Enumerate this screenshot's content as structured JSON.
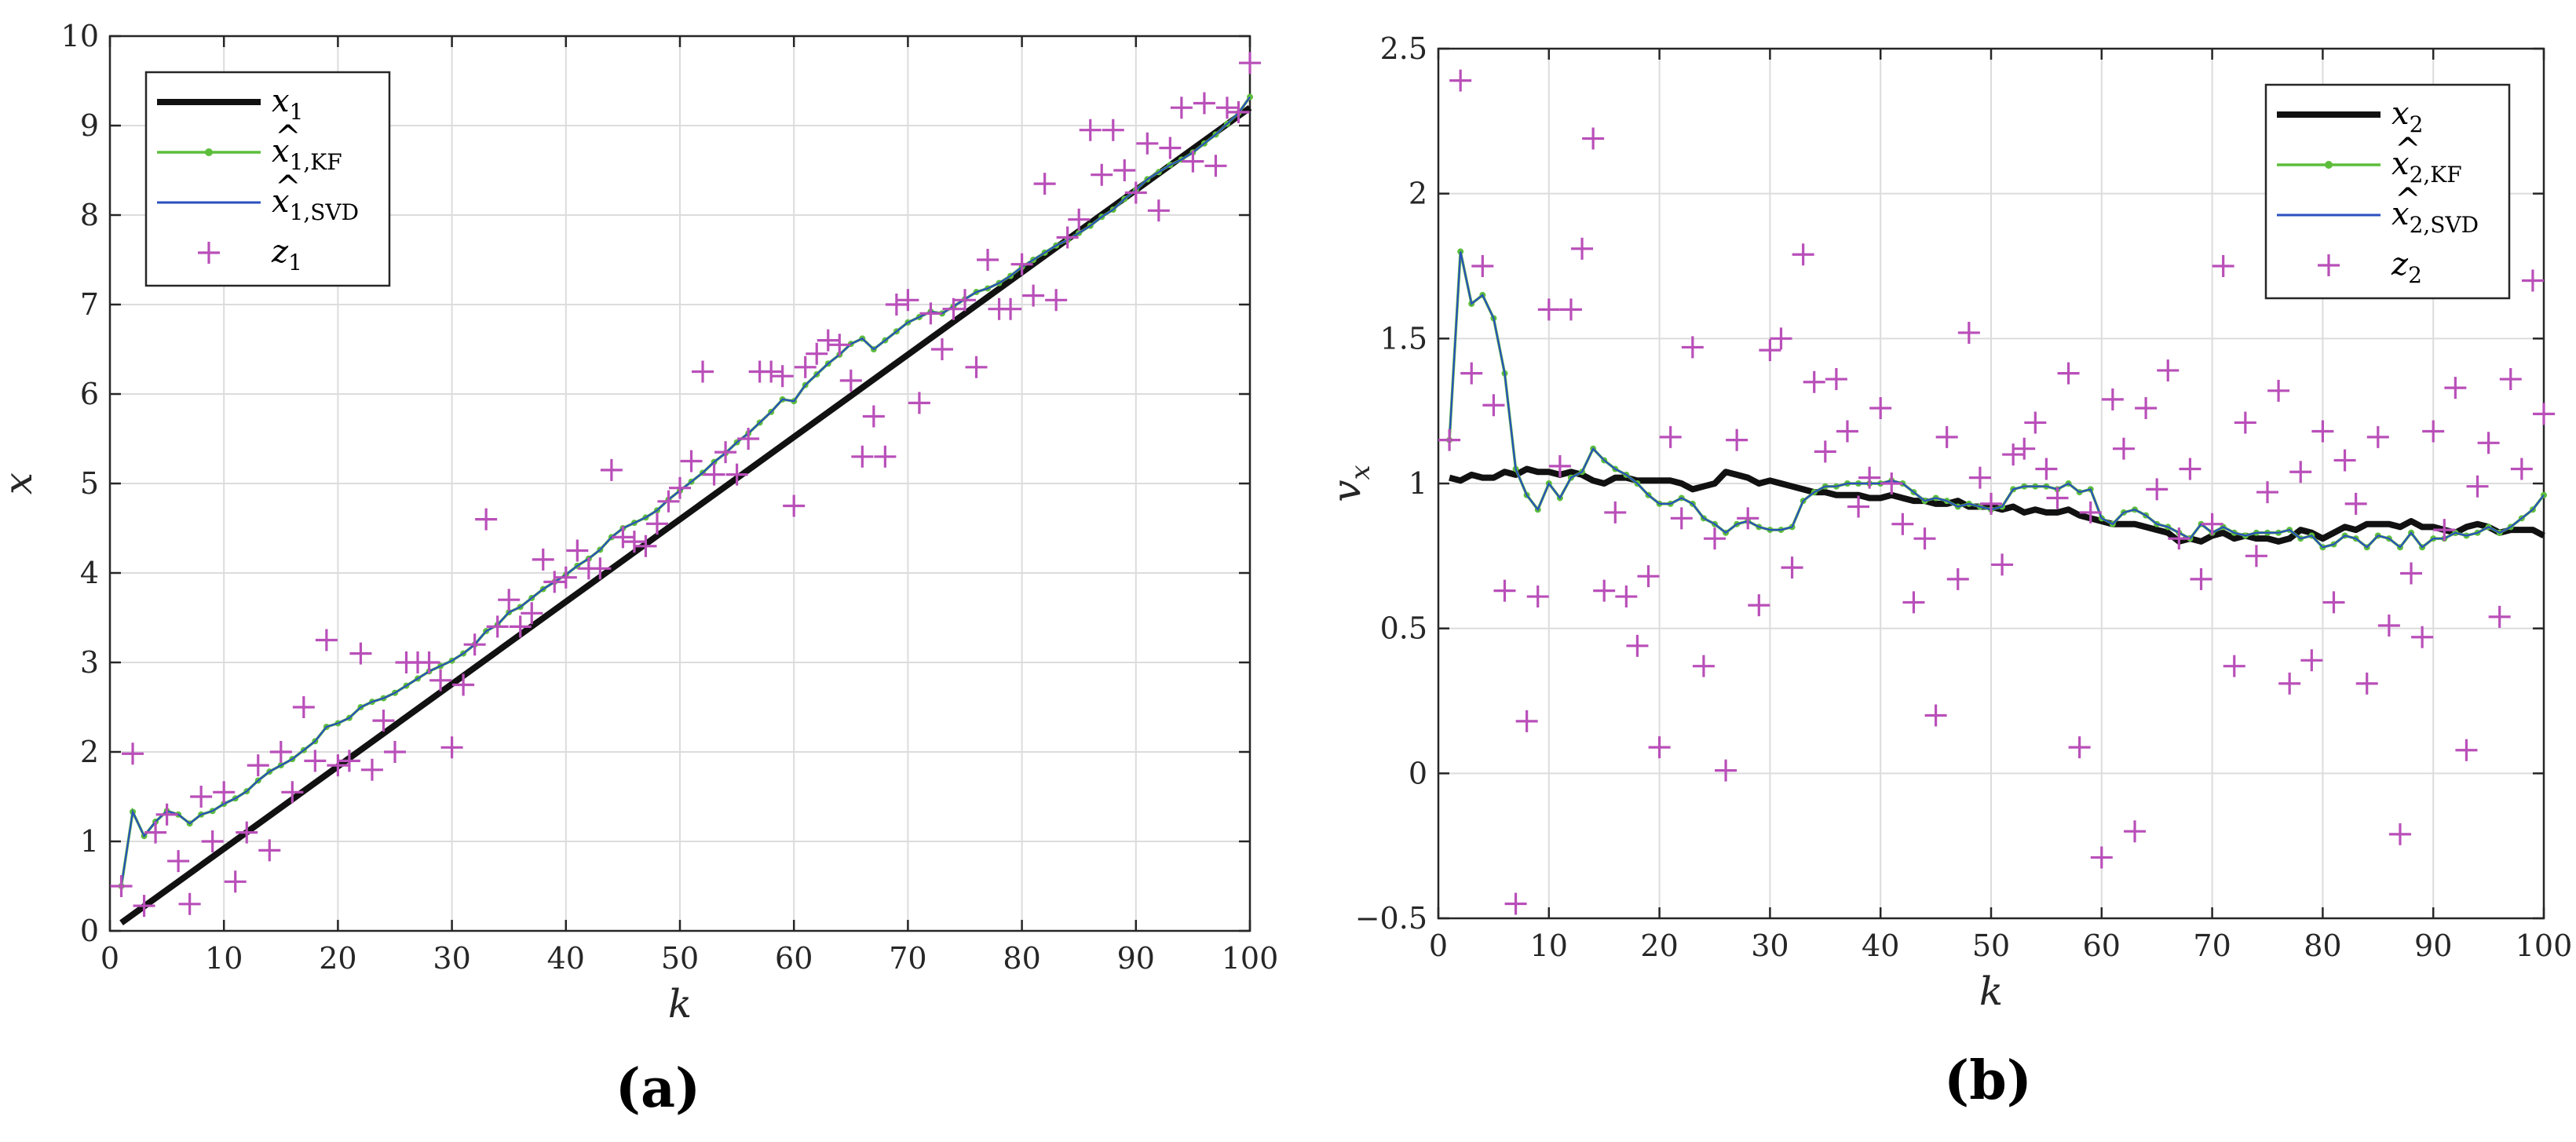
{
  "figure": {
    "caption_a": "(a)",
    "caption_b": "(b)"
  },
  "colors": {
    "true_state": "#111111",
    "kf": "#5dbe3c",
    "svd": "#2a4fbf",
    "measurement": "#b94fb9",
    "grid": "#dcdcdc",
    "axis": "#262626"
  },
  "chart_data": [
    {
      "type": "line",
      "panel": "a",
      "xlabel": "k",
      "ylabel": "x",
      "xlim": [
        0,
        100
      ],
      "ylim": [
        0,
        10
      ],
      "xticks": [
        0,
        10,
        20,
        30,
        40,
        50,
        60,
        70,
        80,
        90,
        100
      ],
      "yticks": [
        0,
        1,
        2,
        3,
        4,
        5,
        6,
        7,
        8,
        9,
        10
      ],
      "grid": true,
      "legend_position": "top-left",
      "legend": [
        {
          "id": "x1",
          "base": "x",
          "sub": "1",
          "hat": false
        },
        {
          "id": "x1_kf",
          "base": "x",
          "sub": "1,KF",
          "hat": true
        },
        {
          "id": "x1_svd",
          "base": "x",
          "sub": "1,SVD",
          "hat": true
        },
        {
          "id": "z1",
          "base": "z",
          "sub": "1",
          "hat": false
        }
      ],
      "series": {
        "x1": {
          "x": [
            1,
            100
          ],
          "y": [
            0.09,
            9.2
          ]
        },
        "x1_kf": {
          "x": [
            1,
            2,
            3,
            4,
            5,
            6,
            7,
            8,
            9,
            10,
            11,
            12,
            13,
            14,
            15,
            16,
            17,
            18,
            19,
            20,
            21,
            22,
            23,
            24,
            25,
            26,
            27,
            28,
            29,
            30,
            31,
            32,
            33,
            34,
            35,
            36,
            37,
            38,
            39,
            40,
            41,
            42,
            43,
            44,
            45,
            46,
            47,
            48,
            49,
            50,
            51,
            52,
            53,
            54,
            55,
            56,
            57,
            58,
            59,
            60,
            61,
            62,
            63,
            64,
            65,
            66,
            67,
            68,
            69,
            70,
            71,
            72,
            73,
            74,
            75,
            76,
            77,
            78,
            79,
            80,
            81,
            82,
            83,
            84,
            85,
            86,
            87,
            88,
            89,
            90,
            91,
            92,
            93,
            94,
            95,
            96,
            97,
            98,
            99,
            100
          ],
          "y": [
            0.5,
            1.33,
            1.06,
            1.22,
            1.34,
            1.3,
            1.2,
            1.3,
            1.34,
            1.42,
            1.48,
            1.56,
            1.68,
            1.78,
            1.85,
            1.92,
            2.02,
            2.12,
            2.28,
            2.32,
            2.38,
            2.5,
            2.56,
            2.6,
            2.66,
            2.74,
            2.82,
            2.9,
            2.96,
            3.02,
            3.1,
            3.2,
            3.35,
            3.42,
            3.56,
            3.62,
            3.72,
            3.82,
            3.9,
            3.98,
            4.08,
            4.16,
            4.26,
            4.4,
            4.5,
            4.56,
            4.62,
            4.7,
            4.82,
            4.92,
            5.02,
            5.12,
            5.24,
            5.34,
            5.46,
            5.56,
            5.68,
            5.8,
            5.94,
            5.92,
            6.1,
            6.22,
            6.34,
            6.44,
            6.56,
            6.62,
            6.5,
            6.6,
            6.7,
            6.8,
            6.86,
            6.92,
            6.9,
            6.98,
            7.06,
            7.14,
            7.18,
            7.24,
            7.32,
            7.42,
            7.5,
            7.58,
            7.66,
            7.72,
            7.8,
            7.88,
            7.98,
            8.06,
            8.18,
            8.28,
            8.4,
            8.48,
            8.56,
            8.62,
            8.7,
            8.8,
            8.9,
            9.02,
            9.14,
            9.32
          ]
        },
        "z1": {
          "x": [
            1,
            2,
            3,
            4,
            5,
            6,
            7,
            8,
            9,
            10,
            11,
            12,
            13,
            14,
            15,
            16,
            17,
            18,
            19,
            20,
            21,
            22,
            23,
            24,
            25,
            26,
            27,
            28,
            29,
            30,
            31,
            32,
            33,
            34,
            35,
            36,
            37,
            38,
            39,
            40,
            41,
            42,
            43,
            44,
            45,
            46,
            47,
            48,
            49,
            50,
            51,
            52,
            53,
            54,
            55,
            56,
            57,
            58,
            59,
            60,
            61,
            62,
            63,
            64,
            65,
            66,
            67,
            68,
            69,
            70,
            71,
            72,
            73,
            74,
            75,
            76,
            77,
            78,
            79,
            80,
            81,
            82,
            83,
            84,
            85,
            86,
            87,
            88,
            89,
            90,
            91,
            92,
            93,
            94,
            95,
            96,
            97,
            98,
            99,
            100
          ],
          "y": [
            0.5,
            1.98,
            0.28,
            1.1,
            1.3,
            0.78,
            0.3,
            1.5,
            1.0,
            1.55,
            0.55,
            1.1,
            1.85,
            0.9,
            2.0,
            1.55,
            2.5,
            1.9,
            3.25,
            1.85,
            1.9,
            3.1,
            1.8,
            2.35,
            2.0,
            3.0,
            3.0,
            3.0,
            2.8,
            2.05,
            2.75,
            3.2,
            4.6,
            3.4,
            3.7,
            3.4,
            3.55,
            4.15,
            3.9,
            3.95,
            4.25,
            4.05,
            4.05,
            5.15,
            4.4,
            4.35,
            4.3,
            4.55,
            4.8,
            4.95,
            5.25,
            6.25,
            5.1,
            5.35,
            5.1,
            5.5,
            6.25,
            6.25,
            6.2,
            4.75,
            6.3,
            6.45,
            6.6,
            6.55,
            6.15,
            5.3,
            5.75,
            5.3,
            7.0,
            7.05,
            5.9,
            6.9,
            6.5,
            6.95,
            7.05,
            6.3,
            7.5,
            6.95,
            6.95,
            7.45,
            7.1,
            8.35,
            7.05,
            7.75,
            7.95,
            8.95,
            8.45,
            8.95,
            8.5,
            8.25,
            8.8,
            8.05,
            8.75,
            9.2,
            8.6,
            9.25,
            8.55,
            9.2,
            9.15,
            9.7
          ]
        }
      }
    },
    {
      "type": "line",
      "panel": "b",
      "xlabel": "k",
      "ylabel": "v",
      "ylabel_sub": "x",
      "xlim": [
        0,
        100
      ],
      "ylim": [
        -0.5,
        2.5
      ],
      "xticks": [
        0,
        10,
        20,
        30,
        40,
        50,
        60,
        70,
        80,
        90,
        100
      ],
      "yticks": [
        -0.5,
        0,
        0.5,
        1,
        1.5,
        2,
        2.5
      ],
      "grid": true,
      "legend_position": "top-right",
      "legend": [
        {
          "id": "x2",
          "base": "x",
          "sub": "2",
          "hat": false
        },
        {
          "id": "x2_kf",
          "base": "x",
          "sub": "2,KF",
          "hat": true
        },
        {
          "id": "x2_svd",
          "base": "x",
          "sub": "2,SVD",
          "hat": true
        },
        {
          "id": "z2",
          "base": "z",
          "sub": "2",
          "hat": false
        }
      ],
      "series": {
        "x2": {
          "x": [
            1,
            2,
            3,
            4,
            5,
            6,
            7,
            8,
            9,
            10,
            11,
            12,
            13,
            14,
            15,
            16,
            17,
            18,
            19,
            20,
            21,
            22,
            23,
            24,
            25,
            26,
            27,
            28,
            29,
            30,
            31,
            32,
            33,
            34,
            35,
            36,
            37,
            38,
            39,
            40,
            41,
            42,
            43,
            44,
            45,
            46,
            47,
            48,
            49,
            50,
            51,
            52,
            53,
            54,
            55,
            56,
            57,
            58,
            59,
            60,
            61,
            62,
            63,
            64,
            65,
            66,
            67,
            68,
            69,
            70,
            71,
            72,
            73,
            74,
            75,
            76,
            77,
            78,
            79,
            80,
            81,
            82,
            83,
            84,
            85,
            86,
            87,
            88,
            89,
            90,
            91,
            92,
            93,
            94,
            95,
            96,
            97,
            98,
            99,
            100
          ],
          "y": [
            1.02,
            1.01,
            1.03,
            1.02,
            1.02,
            1.04,
            1.03,
            1.05,
            1.04,
            1.04,
            1.03,
            1.04,
            1.03,
            1.01,
            1.0,
            1.02,
            1.02,
            1.01,
            1.01,
            1.01,
            1.01,
            1.0,
            0.98,
            0.99,
            1.0,
            1.04,
            1.03,
            1.02,
            1.0,
            1.01,
            1.0,
            0.99,
            0.98,
            0.97,
            0.97,
            0.96,
            0.96,
            0.96,
            0.95,
            0.95,
            0.96,
            0.95,
            0.94,
            0.94,
            0.93,
            0.93,
            0.94,
            0.92,
            0.92,
            0.92,
            0.91,
            0.92,
            0.9,
            0.91,
            0.9,
            0.9,
            0.91,
            0.89,
            0.88,
            0.87,
            0.86,
            0.86,
            0.86,
            0.85,
            0.84,
            0.83,
            0.8,
            0.81,
            0.8,
            0.82,
            0.83,
            0.81,
            0.82,
            0.81,
            0.81,
            0.8,
            0.81,
            0.84,
            0.83,
            0.81,
            0.83,
            0.85,
            0.84,
            0.86,
            0.86,
            0.86,
            0.85,
            0.87,
            0.85,
            0.85,
            0.84,
            0.83,
            0.85,
            0.86,
            0.85,
            0.83,
            0.84,
            0.84,
            0.84,
            0.82
          ]
        },
        "x2_kf": {
          "x": [
            1,
            2,
            3,
            4,
            5,
            6,
            7,
            8,
            9,
            10,
            11,
            12,
            13,
            14,
            15,
            16,
            17,
            18,
            19,
            20,
            21,
            22,
            23,
            24,
            25,
            26,
            27,
            28,
            29,
            30,
            31,
            32,
            33,
            34,
            35,
            36,
            37,
            38,
            39,
            40,
            41,
            42,
            43,
            44,
            45,
            46,
            47,
            48,
            49,
            50,
            51,
            52,
            53,
            54,
            55,
            56,
            57,
            58,
            59,
            60,
            61,
            62,
            63,
            64,
            65,
            66,
            67,
            68,
            69,
            70,
            71,
            72,
            73,
            74,
            75,
            76,
            77,
            78,
            79,
            80,
            81,
            82,
            83,
            84,
            85,
            86,
            87,
            88,
            89,
            90,
            91,
            92,
            93,
            94,
            95,
            96,
            97,
            98,
            99,
            100
          ],
          "y": [
            1.15,
            1.8,
            1.62,
            1.65,
            1.57,
            1.38,
            1.05,
            0.96,
            0.91,
            1.0,
            0.95,
            1.02,
            1.04,
            1.12,
            1.08,
            1.05,
            1.03,
            1.0,
            0.96,
            0.93,
            0.93,
            0.95,
            0.93,
            0.88,
            0.86,
            0.83,
            0.86,
            0.87,
            0.85,
            0.84,
            0.84,
            0.85,
            0.94,
            0.97,
            0.99,
            0.99,
            1.0,
            1.0,
            1.0,
            1.0,
            1.01,
            1.0,
            0.97,
            0.94,
            0.95,
            0.94,
            0.92,
            0.93,
            0.92,
            0.91,
            0.92,
            0.98,
            0.99,
            0.99,
            0.99,
            0.98,
            1.0,
            0.97,
            0.98,
            0.88,
            0.86,
            0.9,
            0.91,
            0.89,
            0.86,
            0.85,
            0.83,
            0.81,
            0.86,
            0.83,
            0.85,
            0.83,
            0.82,
            0.83,
            0.83,
            0.83,
            0.84,
            0.81,
            0.82,
            0.78,
            0.79,
            0.82,
            0.81,
            0.78,
            0.82,
            0.81,
            0.78,
            0.83,
            0.78,
            0.81,
            0.81,
            0.83,
            0.82,
            0.83,
            0.85,
            0.83,
            0.85,
            0.88,
            0.91,
            0.96
          ]
        },
        "z2": {
          "x": [
            1,
            2,
            3,
            4,
            5,
            6,
            7,
            8,
            9,
            10,
            11,
            12,
            13,
            14,
            15,
            16,
            17,
            18,
            19,
            20,
            21,
            22,
            23,
            24,
            25,
            26,
            27,
            28,
            29,
            30,
            31,
            32,
            33,
            34,
            35,
            36,
            37,
            38,
            39,
            40,
            41,
            42,
            43,
            44,
            45,
            46,
            47,
            48,
            49,
            50,
            51,
            52,
            53,
            54,
            55,
            56,
            57,
            58,
            59,
            60,
            61,
            62,
            63,
            64,
            65,
            66,
            67,
            68,
            69,
            70,
            71,
            72,
            73,
            74,
            75,
            76,
            77,
            78,
            79,
            80,
            81,
            82,
            83,
            84,
            85,
            86,
            87,
            88,
            89,
            90,
            91,
            92,
            93,
            94,
            95,
            96,
            97,
            98,
            99,
            100
          ],
          "y": [
            1.15,
            2.39,
            1.38,
            1.75,
            1.27,
            0.63,
            -0.45,
            0.18,
            0.61,
            1.6,
            1.06,
            1.6,
            1.81,
            2.19,
            0.63,
            0.9,
            0.61,
            0.44,
            0.68,
            0.09,
            1.16,
            0.88,
            1.47,
            0.37,
            0.81,
            0.01,
            1.15,
            0.88,
            0.58,
            1.46,
            1.5,
            0.71,
            1.79,
            1.35,
            1.11,
            1.36,
            1.18,
            0.92,
            1.02,
            1.26,
            1.0,
            0.86,
            0.59,
            0.81,
            0.2,
            1.16,
            0.67,
            1.52,
            1.02,
            0.93,
            0.72,
            1.1,
            1.12,
            1.21,
            1.05,
            0.95,
            1.38,
            0.09,
            0.9,
            -0.29,
            1.29,
            1.12,
            -0.2,
            1.26,
            0.98,
            1.39,
            0.81,
            1.05,
            0.67,
            0.86,
            1.75,
            0.37,
            1.21,
            0.75,
            0.97,
            1.32,
            0.31,
            1.04,
            0.39,
            1.18,
            0.59,
            1.08,
            0.93,
            0.31,
            1.16,
            0.51,
            -0.21,
            0.69,
            0.47,
            1.18,
            0.84,
            1.33,
            0.08,
            0.99,
            1.14,
            0.54,
            1.36,
            1.05,
            1.7,
            1.24
          ]
        }
      }
    }
  ]
}
